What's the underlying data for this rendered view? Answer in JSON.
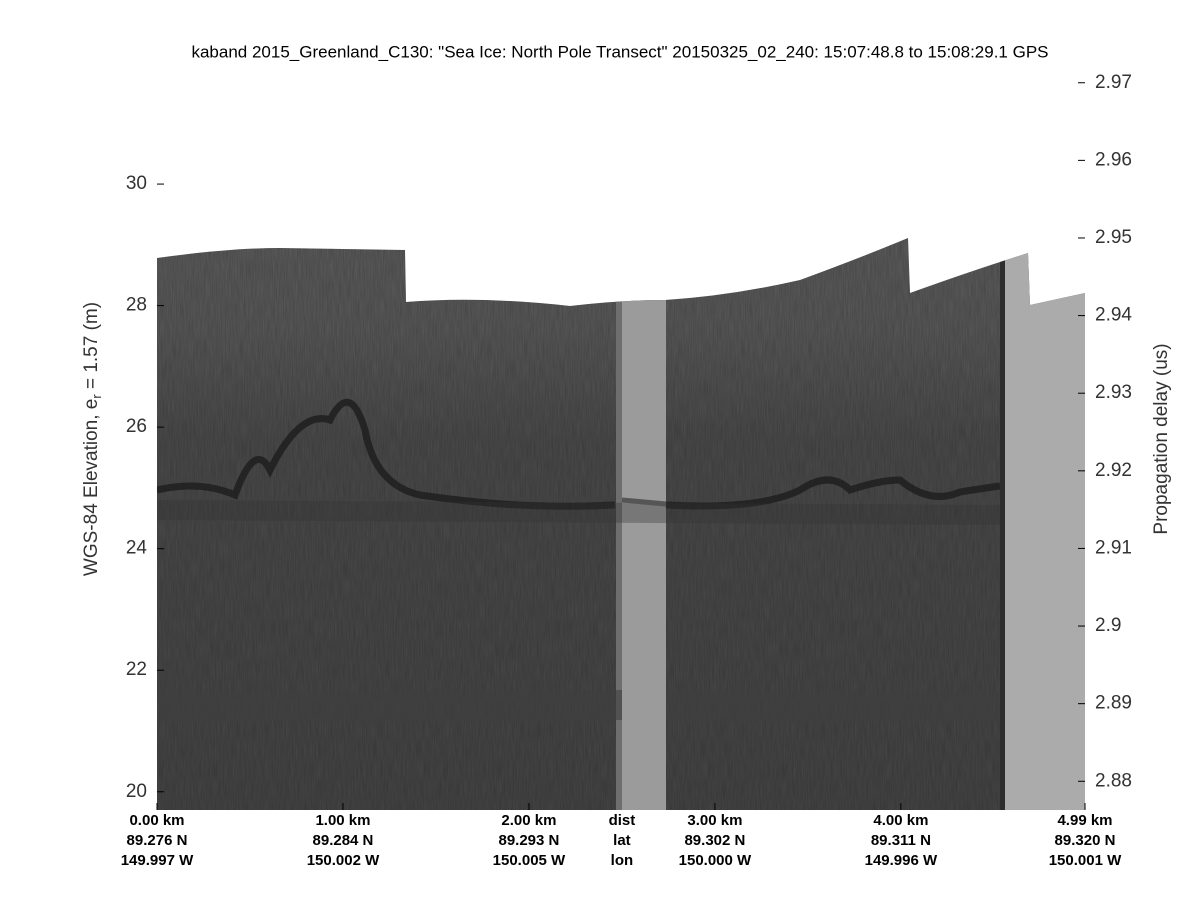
{
  "chart_data": {
    "type": "echogram",
    "title": "kaband 2015_Greenland_C130: \"Sea Ice: North Pole Transect\"  20150325_02_240: 15:07:48.8 to 15:08:29.1 GPS",
    "ylabel_parts": [
      "WGS-84 Elevation, e",
      "r",
      " = 1.57 (m)"
    ],
    "y2label": "Propagation delay (us)",
    "xlim": [
      0,
      4.99
    ],
    "xticks": [
      {
        "value": 0,
        "label": "0.00 km",
        "lat": "89.276 N",
        "lon": "149.997 W"
      },
      {
        "value": 1,
        "label": "1.00 km",
        "lat": "89.284 N",
        "lon": "150.002 W"
      },
      {
        "value": 2,
        "label": "2.00 km",
        "lat": "89.293 N",
        "lon": "150.005 W"
      },
      {
        "value": 3,
        "label": "3.00 km",
        "lat": "89.302 N",
        "lon": "150.000 W"
      },
      {
        "value": 4,
        "label": "4.00 km",
        "lat": "89.311 N",
        "lon": "149.996 W"
      },
      {
        "value": 4.99,
        "label": "4.99 km",
        "lat": "89.320 N",
        "lon": "150.001 W"
      }
    ],
    "row_labels": {
      "value": 2.5,
      "labels": [
        "dist",
        "lat",
        "lon"
      ]
    },
    "ylim": [
      19.7,
      31.91
    ],
    "yticks": [
      20,
      22,
      24,
      26,
      28,
      30
    ],
    "y2lim": [
      2.8763,
      2.9719
    ],
    "y2ticks": [
      2.88,
      2.89,
      2.9,
      2.91,
      2.92,
      2.93,
      2.94,
      2.95,
      2.96,
      2.97
    ]
  }
}
